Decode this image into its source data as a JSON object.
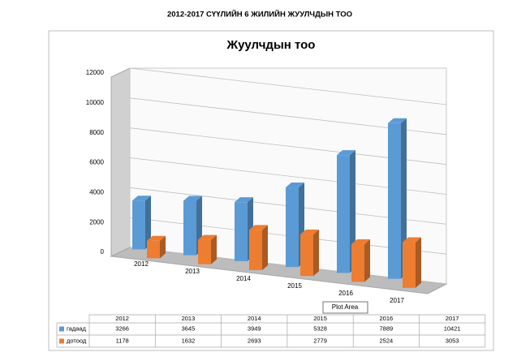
{
  "heading": "2012-2017 СҮҮЛИЙН 6 ЖИЛИЙН ЖУУЛЧДЫН ТОО",
  "tooltip": "Plot Area",
  "chart_data": {
    "type": "bar3d",
    "title": "Жуулчдын тоо",
    "categories": [
      "2012",
      "2013",
      "2014",
      "2015",
      "2016",
      "2017"
    ],
    "series": [
      {
        "name": "гадаад",
        "color": "#5b9bd5",
        "values": [
          3266,
          3645,
          3949,
          5328,
          7889,
          10421
        ]
      },
      {
        "name": "дотоод",
        "color": "#ed7d31",
        "values": [
          1178,
          1632,
          2693,
          2779,
          2524,
          3053
        ]
      }
    ],
    "ylim": [
      0,
      12000
    ],
    "yticks": [
      0,
      2000,
      4000,
      6000,
      8000,
      10000,
      12000
    ],
    "grid": true,
    "data_table": true
  }
}
